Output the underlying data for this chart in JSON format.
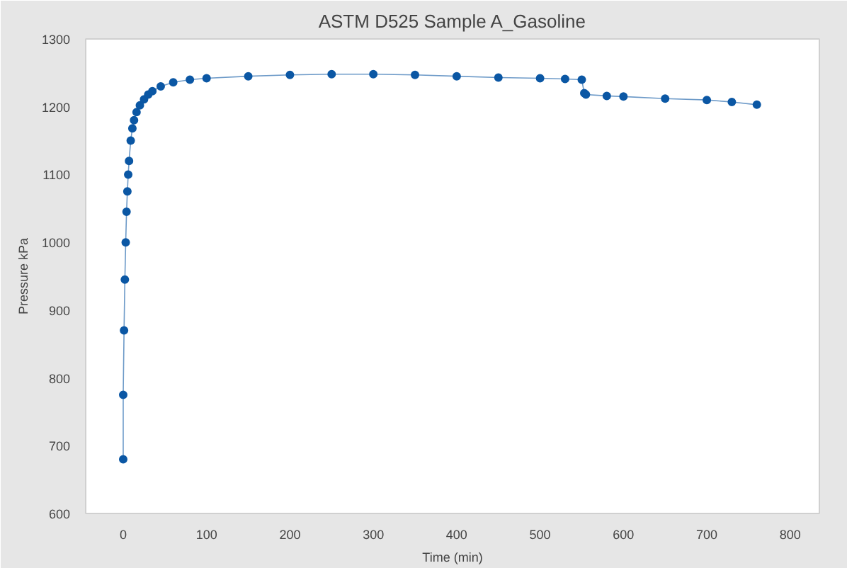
{
  "chart_data": {
    "type": "line",
    "title": "ASTM D525 Sample A_Gasoline",
    "xlabel": "Time (min)",
    "ylabel": "Pressure kPa",
    "xlim": [
      -45,
      835
    ],
    "ylim": [
      600,
      1300
    ],
    "xticks": [
      0,
      100,
      200,
      300,
      400,
      500,
      600,
      700,
      800
    ],
    "yticks": [
      600,
      700,
      800,
      900,
      1000,
      1100,
      1200,
      1300
    ],
    "grid": false,
    "marker": "circle",
    "line_style": "solid",
    "series": [
      {
        "color": "#0b57a4",
        "x": [
          0,
          0,
          1,
          2,
          3,
          4,
          5,
          6,
          7,
          9,
          11,
          13,
          16,
          20,
          25,
          30,
          35,
          45,
          60,
          80,
          100,
          150,
          200,
          250,
          300,
          350,
          400,
          450,
          500,
          530,
          550,
          553,
          555,
          580,
          600,
          650,
          700,
          730,
          760
        ],
        "values": [
          680,
          775,
          870,
          945,
          1000,
          1045,
          1075,
          1100,
          1120,
          1150,
          1168,
          1180,
          1192,
          1202,
          1211,
          1218,
          1223,
          1230,
          1236,
          1240,
          1242,
          1245,
          1247,
          1248,
          1248,
          1247,
          1245,
          1243,
          1242,
          1241,
          1240,
          1220,
          1218,
          1216,
          1215,
          1212,
          1210,
          1207,
          1203
        ]
      }
    ]
  }
}
